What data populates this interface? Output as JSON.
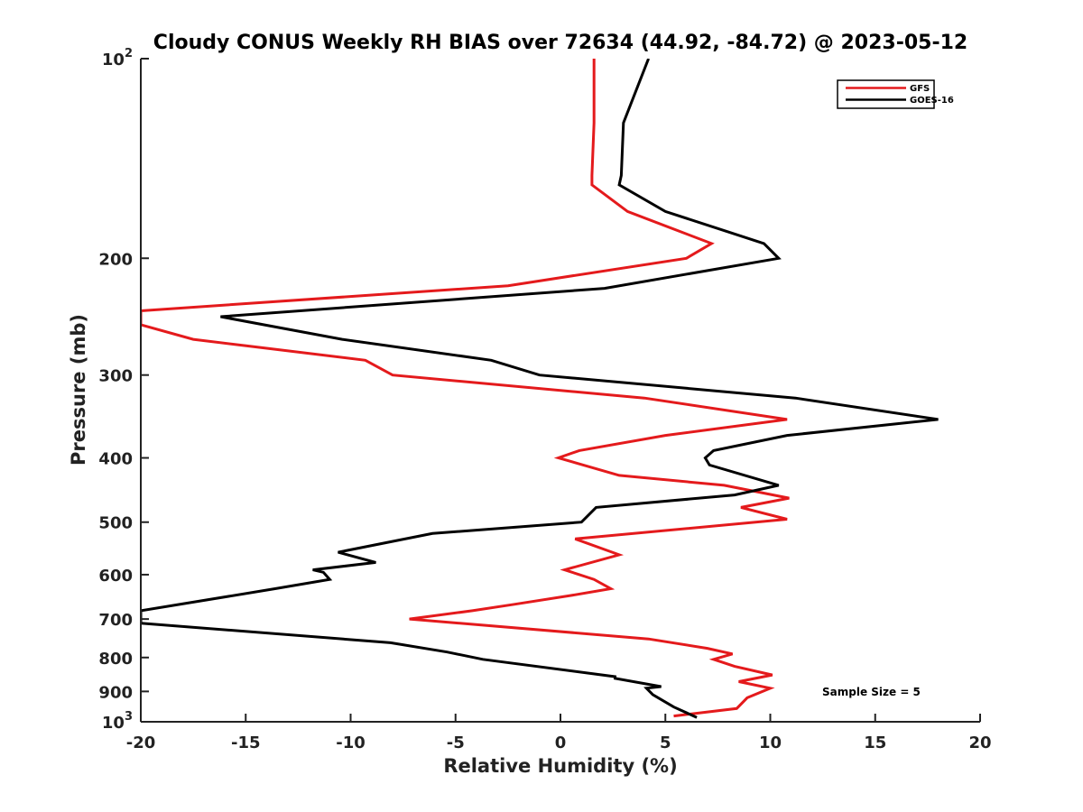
{
  "chart_data": {
    "type": "line",
    "title": "Cloudy CONUS Weekly RH BIAS over 72634 (44.92, -84.72) @ 2023-05-12",
    "xlabel": "Relative Humidity (%)",
    "ylabel": "Pressure (mb)",
    "xlim": [
      -20,
      20
    ],
    "ylim": [
      100,
      1000
    ],
    "y_scale": "log",
    "y_reversed": true,
    "x_ticks": [
      "-20",
      "-15",
      "-10",
      "-5",
      "0",
      "5",
      "10",
      "15",
      "20"
    ],
    "y_ticks": [
      {
        "value": 100,
        "base": "10",
        "exp": "2"
      },
      {
        "value": 200,
        "label": "200"
      },
      {
        "value": 300,
        "label": "300"
      },
      {
        "value": 400,
        "label": "400"
      },
      {
        "value": 500,
        "label": "500"
      },
      {
        "value": 600,
        "label": "600"
      },
      {
        "value": 700,
        "label": "700"
      },
      {
        "value": 800,
        "label": "800"
      },
      {
        "value": 900,
        "label": "900"
      },
      {
        "value": 1000,
        "base": "10",
        "exp": "3"
      }
    ],
    "grid": false,
    "legend_position": "top-right",
    "annotation": "Sample Size = 5",
    "series": [
      {
        "name": "GFS",
        "color": "#e41a1c",
        "x": [
          1.6,
          1.6,
          1.5,
          1.5,
          3.2,
          7.2,
          6.0,
          -2.5,
          -20.0,
          -20.0,
          -17.5,
          -9.3,
          -8.0,
          4.0,
          10.8,
          5.0,
          0.9,
          -0.1,
          2.8,
          7.8,
          10.9,
          8.6,
          10.8,
          0.7,
          2.8,
          0.2,
          1.6,
          2.4,
          0.5,
          -2.2,
          -4.2,
          -7.2,
          4.2,
          7.0,
          8.2,
          7.3,
          8.3,
          10.1,
          8.5,
          10.0,
          8.9,
          8.4,
          5.4
        ]
      },
      {
        "name": "GOES-16",
        "color": "#000000",
        "x": [
          4.2,
          3.0,
          2.9,
          2.8,
          5.0,
          9.7,
          10.4,
          2.1,
          -16.2,
          -10.4,
          -3.3,
          -1.0,
          11.2,
          18.0,
          10.8,
          7.3,
          6.9,
          7.1,
          10.4,
          8.3,
          1.7,
          1.0,
          -6.1,
          -10.6,
          -8.8,
          -11.8,
          -11.3,
          -11.0,
          -13.6,
          -17.5,
          -20.0,
          -20.0,
          -8.1,
          -5.4,
          -3.7,
          2.6,
          2.6,
          4.8,
          4.1,
          4.4,
          5.4,
          6.5
        ]
      }
    ]
  }
}
